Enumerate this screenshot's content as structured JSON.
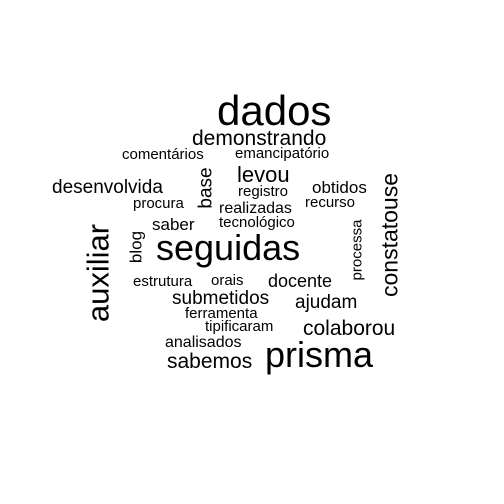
{
  "word_cloud": {
    "text_color": "#000000",
    "background": "#ffffff",
    "words": [
      "dados",
      "demonstrando",
      "comentários",
      "emancipatório",
      "desenvolvida",
      "base",
      "levou",
      "registro",
      "obtidos",
      "constatouse",
      "procura",
      "realizadas",
      "recurso",
      "saber",
      "tecnológico",
      "auxiliar",
      "blog",
      "seguidas",
      "processa",
      "estrutura",
      "orais",
      "docente",
      "submetidos",
      "ajudam",
      "ferramenta",
      "tipificaram",
      "colaborou",
      "analisados",
      "sabemos",
      "prisma"
    ]
  }
}
